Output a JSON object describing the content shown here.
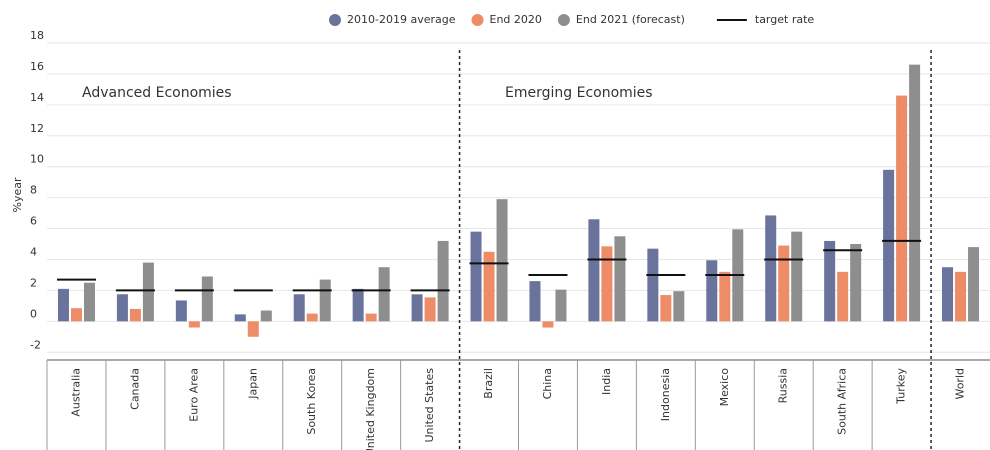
{
  "chart_data": {
    "type": "bar",
    "y_label": "%year",
    "annotations": [
      "Advanced Economies",
      "Emerging Economies"
    ],
    "categories": [
      "Australia",
      "Canada",
      "Euro Area",
      "Japan",
      "South Korea",
      "United Kingdom",
      "United States",
      "Brazil",
      "China",
      "India",
      "Indonesia",
      "Mexico",
      "Russia",
      "South Africa",
      "Turkey",
      "World"
    ],
    "series": [
      {
        "name": "2010-2019 average",
        "color": "#6a739b",
        "values": [
          2.1,
          1.75,
          1.35,
          0.45,
          1.75,
          2.1,
          1.75,
          5.8,
          2.6,
          6.6,
          4.7,
          3.95,
          6.85,
          5.2,
          9.8,
          3.5
        ]
      },
      {
        "name": "End 2020",
        "color": "#ef8c68",
        "values": [
          0.85,
          0.8,
          -0.4,
          -1.0,
          0.5,
          0.5,
          1.55,
          4.5,
          -0.4,
          4.85,
          1.7,
          3.2,
          4.9,
          3.2,
          14.6,
          3.2
        ]
      },
      {
        "name": "End 2021 (forecast)",
        "color": "#8e8e8e",
        "values": [
          2.5,
          3.8,
          2.9,
          0.7,
          2.7,
          3.5,
          5.2,
          7.9,
          2.05,
          5.5,
          1.95,
          5.95,
          5.8,
          5.0,
          16.6,
          4.8
        ]
      }
    ],
    "target": {
      "name": "target rate",
      "color": "#111111",
      "values": [
        2.7,
        2,
        2,
        2,
        2,
        2,
        2,
        3.75,
        3,
        4,
        3,
        3,
        4,
        4.6,
        5.2,
        null
      ]
    },
    "ylim": [
      -2.5,
      18
    ],
    "yticks": [
      -2,
      0,
      2,
      4,
      6,
      8,
      10,
      12,
      14,
      16,
      18
    ],
    "grid": true
  }
}
